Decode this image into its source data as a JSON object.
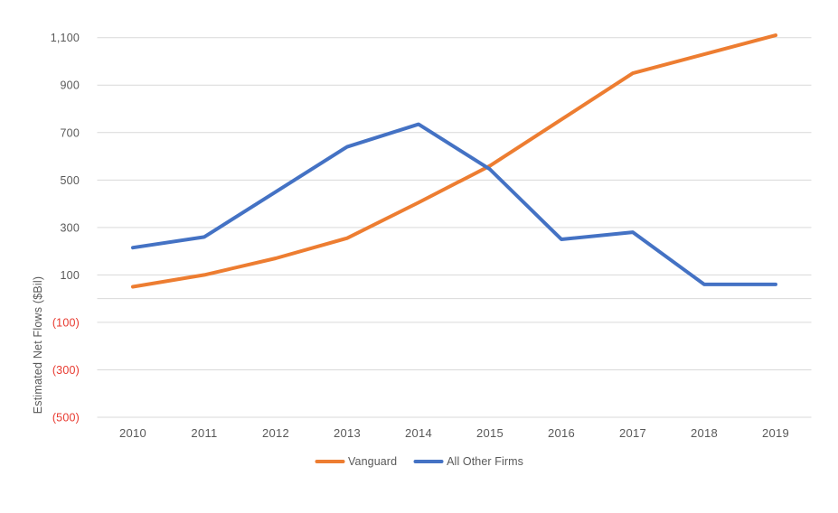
{
  "chart_data": {
    "type": "line",
    "title": "",
    "xlabel": "",
    "ylabel": "Estimated Net Flows ($Bil)",
    "categories": [
      "2010",
      "2011",
      "2012",
      "2013",
      "2014",
      "2015",
      "2016",
      "2017",
      "2018",
      "2019"
    ],
    "series": [
      {
        "name": "Vanguard",
        "color": "#ED7D31",
        "values": [
          50,
          100,
          170,
          255,
          405,
          560,
          755,
          950,
          1030,
          1110
        ]
      },
      {
        "name": "All Other Firms",
        "color": "#4472C4",
        "values": [
          215,
          260,
          450,
          640,
          735,
          545,
          250,
          280,
          60,
          60
        ]
      }
    ],
    "ylim": [
      -500,
      1100
    ],
    "yticks": [
      1100,
      900,
      700,
      500,
      300,
      100,
      -100,
      -300,
      -500
    ],
    "zero_axis_line": 0,
    "grid": "horizontal",
    "legend_position": "bottom-center",
    "colors": {
      "gridline": "#D9D9D9",
      "axis_label": "#595959",
      "negative_label": "#E8392F",
      "background": "#FFFFFF"
    },
    "tick_label_format": "negatives-in-parentheses-red, thousands-comma"
  }
}
